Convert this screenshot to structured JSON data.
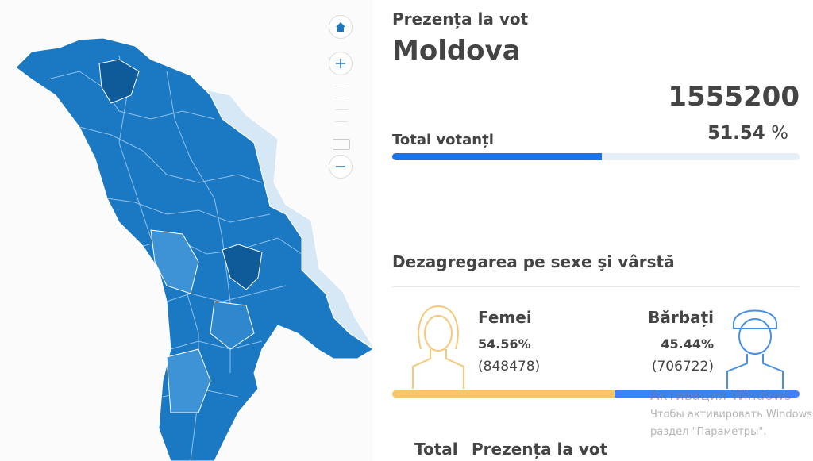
{
  "header": {
    "subtitle": "Prezența la vot",
    "title": "Moldova"
  },
  "turnout": {
    "total": "1555200",
    "percent": 51.54,
    "percent_unit": "%",
    "label": "Total votanți"
  },
  "gender": {
    "title": "Dezagregarea pe sexe şi vârstă",
    "female": {
      "label": "Femei",
      "percent": 54.56,
      "percent_label": "54.56%",
      "count_label": "(848478)"
    },
    "male": {
      "label": "Bărbați",
      "percent": 45.44,
      "percent_label": "45.44%",
      "count_label": "(706722)"
    }
  },
  "table": {
    "headers": [
      "Total",
      "Prezența la vot"
    ]
  },
  "watermark": {
    "title": "Активация Windows",
    "lines": [
      "Чтобы активировать Windows,",
      "раздел \"Параметры\"."
    ]
  }
}
